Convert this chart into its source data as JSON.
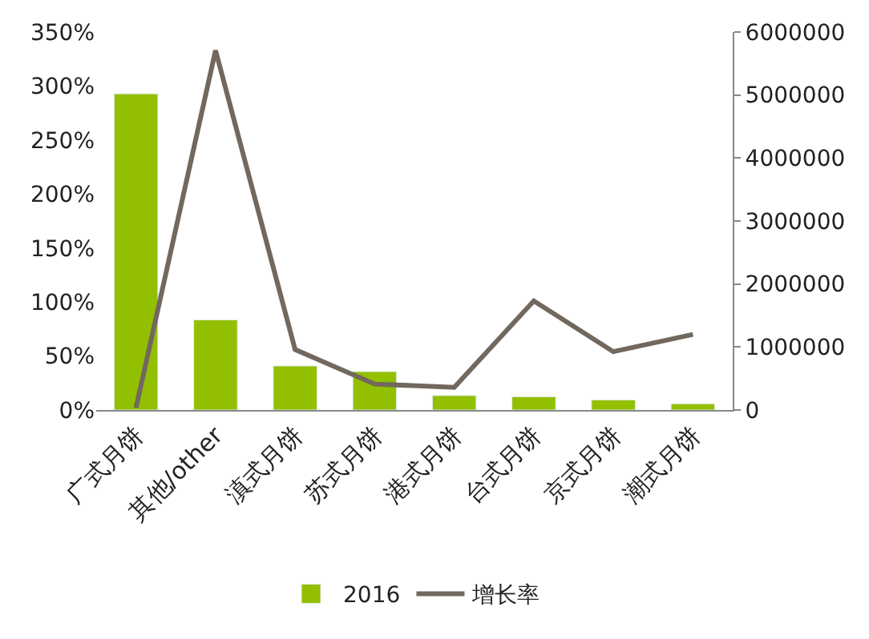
{
  "chart_data": {
    "type": "bar",
    "categories": [
      "广式月饼",
      "其他/other",
      "滇式月饼",
      "苏式月饼",
      "港式月饼",
      "台式月饼",
      "京式月饼",
      "潮式月饼"
    ],
    "series": [
      {
        "name": "2016",
        "axis": "y2",
        "color": "#92c000",
        "values": [
          5020000,
          1430000,
          700000,
          610000,
          230000,
          210000,
          160000,
          100000
        ]
      },
      {
        "name": "增长率",
        "type": "line",
        "axis": "y",
        "color": "#72685e",
        "values": [
          2,
          333,
          56,
          24,
          21,
          101,
          54,
          70
        ]
      }
    ],
    "ylim": [
      0,
      350
    ],
    "yticks": [
      {
        "value": 0,
        "label": "0%"
      },
      {
        "value": 50,
        "label": "50%"
      },
      {
        "value": 100,
        "label": "100%"
      },
      {
        "value": 150,
        "label": "150%"
      },
      {
        "value": 200,
        "label": "200%"
      },
      {
        "value": 250,
        "label": "250%"
      },
      {
        "value": 300,
        "label": "300%"
      },
      {
        "value": 350,
        "label": "350%"
      }
    ],
    "y2lim": [
      0,
      6000000
    ],
    "y2ticks": [
      0,
      1000000,
      2000000,
      3000000,
      4000000,
      5000000,
      6000000
    ],
    "legend": "bottom",
    "marker": "none",
    "line_style": "solid"
  }
}
